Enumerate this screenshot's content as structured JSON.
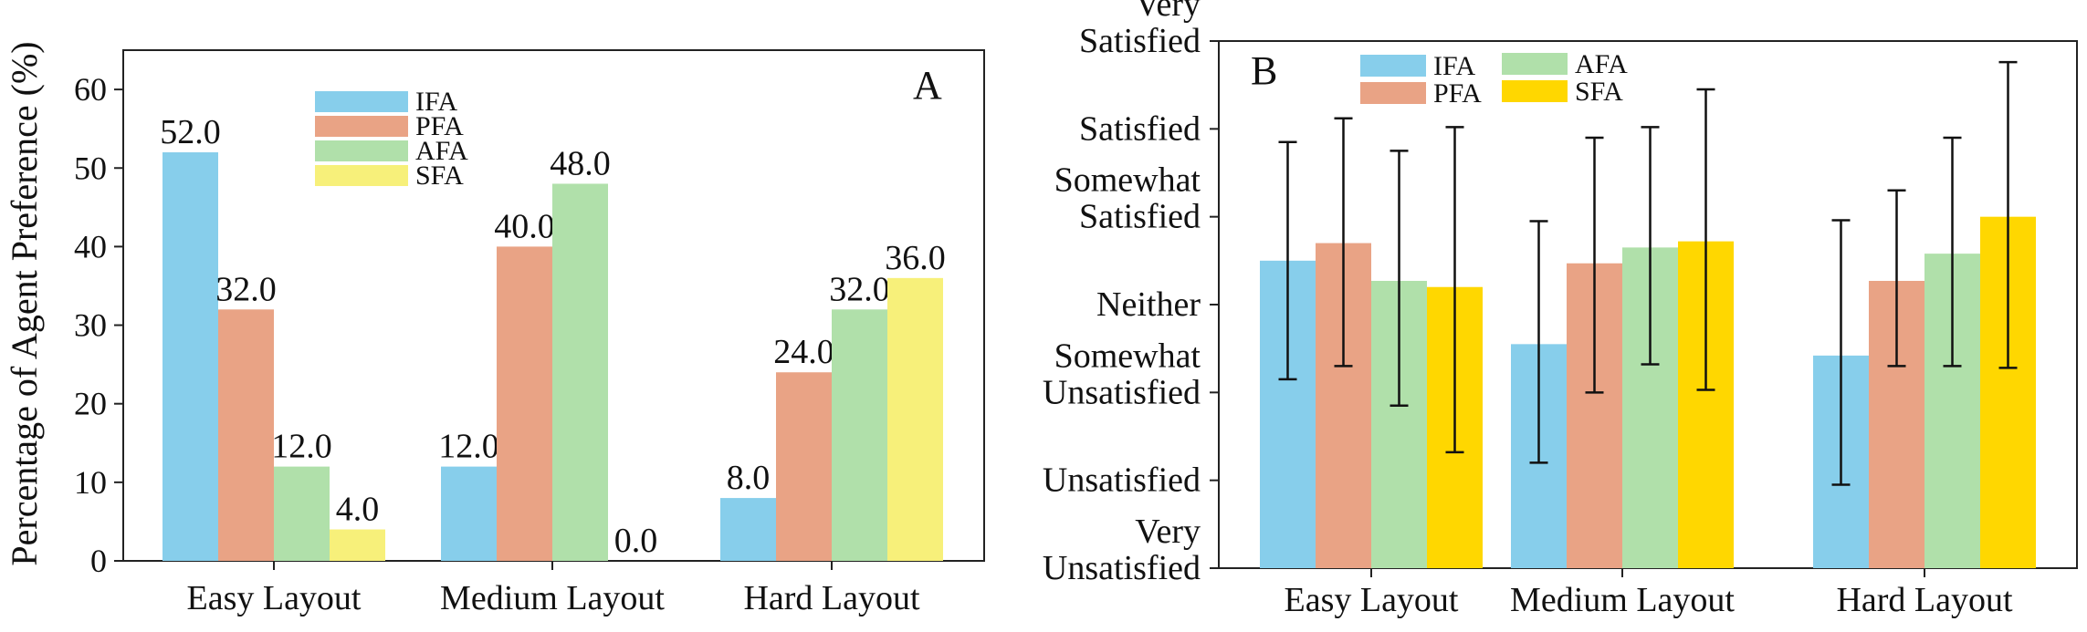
{
  "chart_data": [
    {
      "type": "bar",
      "panel_label": "A",
      "ylabel": "Percentage of Agent Preference (%)",
      "xlabel": "",
      "ylim": [
        0,
        65
      ],
      "yticks": [
        "0",
        "10",
        "20",
        "30",
        "40",
        "50",
        "60"
      ],
      "categories": [
        "Easy Layout",
        "Medium Layout",
        "Hard Layout"
      ],
      "legend_position": "top-center",
      "series": [
        {
          "name": "IFA",
          "color": "#87ceeb",
          "values": [
            52.0,
            12.0,
            8.0
          ],
          "labels": [
            "52.0",
            "12.0",
            "8.0"
          ]
        },
        {
          "name": "PFA",
          "color": "#e9a385",
          "values": [
            32.0,
            40.0,
            24.0
          ],
          "labels": [
            "32.0",
            "40.0",
            "24.0"
          ]
        },
        {
          "name": "AFA",
          "color": "#b0e0aa",
          "values": [
            12.0,
            48.0,
            32.0
          ],
          "labels": [
            "12.0",
            "48.0",
            "32.0"
          ]
        },
        {
          "name": "SFA",
          "color": "#f7f07a",
          "values": [
            4.0,
            0.0,
            36.0
          ],
          "labels": [
            "4.0",
            "0.0",
            "36.0"
          ]
        }
      ]
    },
    {
      "type": "bar",
      "panel_label": "B",
      "ylabel": "",
      "xlabel": "",
      "ylim": [
        1,
        7
      ],
      "yticks": [
        [
          "Very",
          "Satisfied"
        ],
        [
          "Satisfied"
        ],
        [
          "Somewhat",
          "Satisfied"
        ],
        [
          "Neither"
        ],
        [
          "Somewhat",
          "Unsatisfied"
        ],
        [
          "Unsatisfied"
        ],
        [
          "Very",
          "Unsatisfied"
        ]
      ],
      "categories": [
        "Easy Layout",
        "Medium Layout",
        "Hard Layout"
      ],
      "legend_position": "top-left",
      "series": [
        {
          "name": "IFA",
          "color": "#87ceeb",
          "values": [
            4.5,
            3.55,
            3.42
          ],
          "err_low": [
            3.15,
            2.2,
            1.95
          ],
          "err_high": [
            5.85,
            4.95,
            4.96
          ]
        },
        {
          "name": "PFA",
          "color": "#e9a385",
          "values": [
            4.7,
            4.47,
            4.27
          ],
          "err_low": [
            3.3,
            3.0,
            3.3
          ],
          "err_high": [
            6.12,
            5.9,
            5.3
          ]
        },
        {
          "name": "AFA",
          "color": "#b0e0aa",
          "values": [
            4.27,
            4.65,
            4.58
          ],
          "err_low": [
            2.85,
            3.32,
            3.3
          ],
          "err_high": [
            5.75,
            6.02,
            5.9
          ]
        },
        {
          "name": "SFA",
          "color": "#ffd700",
          "values": [
            4.2,
            4.72,
            5.0
          ],
          "err_low": [
            2.32,
            3.03,
            3.28
          ],
          "err_high": [
            6.02,
            6.45,
            6.76
          ]
        }
      ]
    }
  ]
}
